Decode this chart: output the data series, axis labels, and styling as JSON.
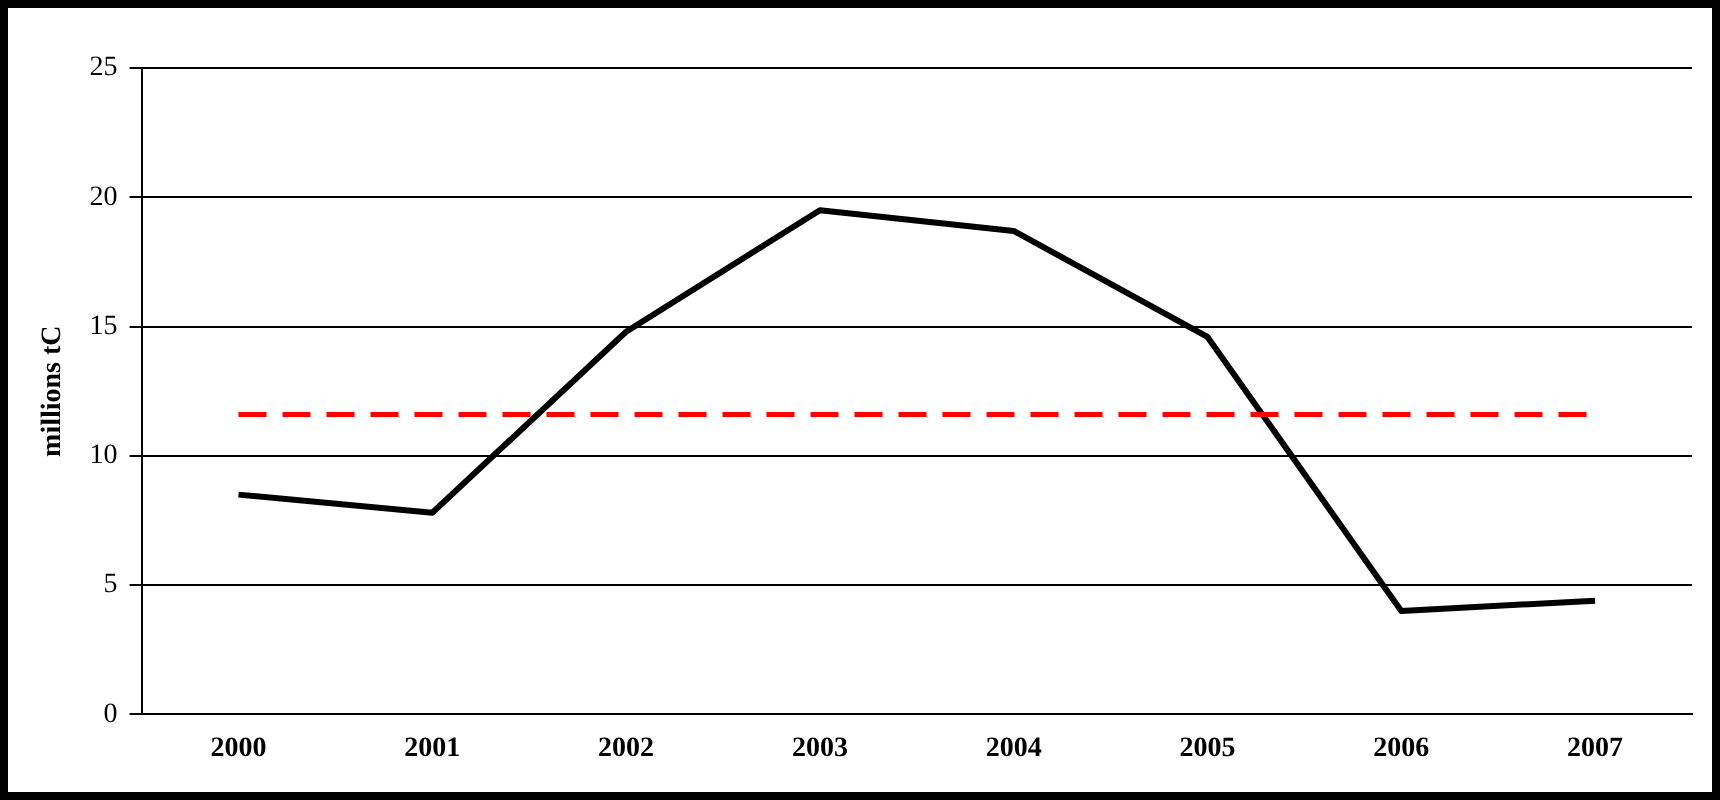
{
  "chart_data": {
    "type": "line",
    "ylabel": "millions tC",
    "categories": [
      "2000",
      "2001",
      "2002",
      "2003",
      "2004",
      "2005",
      "2006",
      "2007"
    ],
    "series": [
      {
        "color": "#000000",
        "values": [
          8.5,
          7.8,
          14.8,
          19.5,
          18.7,
          14.6,
          4.0,
          4.4
        ]
      }
    ],
    "ylim": [
      0,
      25
    ],
    "yticks": [
      0,
      5,
      10,
      15,
      20,
      25
    ],
    "grid": "y",
    "legend": false,
    "marker": "none",
    "line_style": "solid",
    "ref_lines": [
      {
        "axis": "y",
        "value": 11.6,
        "color": "#ff0000",
        "line_style": "dashed"
      }
    ]
  }
}
